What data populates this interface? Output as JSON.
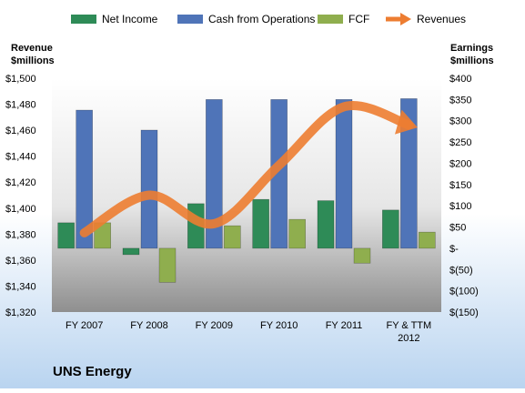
{
  "chart_data": {
    "type": "bar",
    "title": "UNS Energy",
    "categories": [
      "FY 2007",
      "FY 2008",
      "FY 2009",
      "FY 2010",
      "FY 2011",
      "FY & TTM 2012"
    ],
    "left_axis": {
      "label_line1": "Revenue",
      "label_line2": "$millions",
      "range": [
        1320,
        1500
      ],
      "ticks": [
        "$1,320",
        "$1,340",
        "$1,360",
        "$1,380",
        "$1,400",
        "$1,420",
        "$1,440",
        "$1,460",
        "$1,480",
        "$1,500"
      ]
    },
    "right_axis": {
      "label_line1": "Earnings",
      "label_line2": "$millions",
      "range": [
        -150,
        400
      ],
      "ticks": [
        "$(150)",
        "$(100)",
        "$(50)",
        "$-",
        "$50",
        "$100",
        "$150",
        "$200",
        "$250",
        "$300",
        "$350",
        "$400"
      ]
    },
    "series": [
      {
        "name": "Net Income",
        "axis": "right",
        "kind": "bar",
        "color": "#2e8b57",
        "values": [
          60,
          -15,
          105,
          115,
          112,
          90
        ]
      },
      {
        "name": "Cash from Operations",
        "axis": "right",
        "kind": "bar",
        "color": "#4f74b8",
        "values": [
          325,
          278,
          350,
          350,
          350,
          352
        ]
      },
      {
        "name": "FCF",
        "axis": "right",
        "kind": "bar",
        "color": "#8fae4e",
        "values": [
          60,
          -80,
          53,
          68,
          -35,
          38
        ]
      },
      {
        "name": "Revenues",
        "axis": "left",
        "kind": "arrow",
        "color": "#ed7d31",
        "values": [
          1381,
          1410,
          1388,
          1433,
          1478,
          1464
        ]
      }
    ],
    "grid": false,
    "legend_position": "top"
  }
}
